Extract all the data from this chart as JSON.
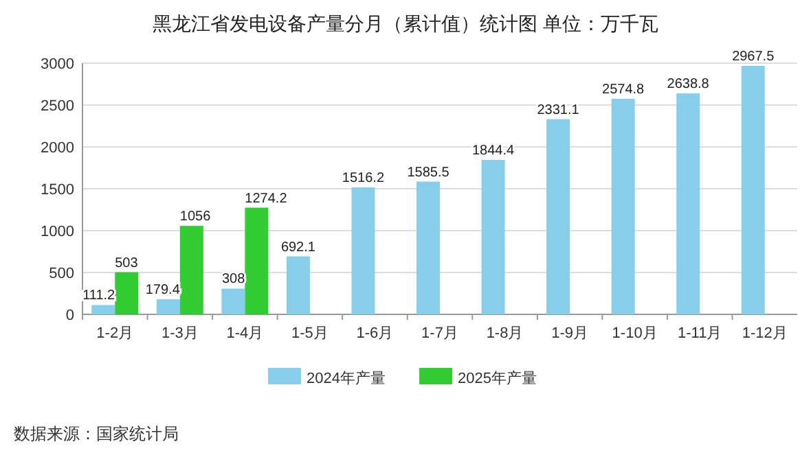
{
  "chart_data": {
    "type": "bar",
    "title": "黑龙江省发电设备产量分月（累计值）统计图 单位：万千瓦",
    "categories": [
      "1-2月",
      "1-3月",
      "1-4月",
      "1-5月",
      "1-6月",
      "1-7月",
      "1-8月",
      "1-9月",
      "1-10月",
      "1-11月",
      "1-12月"
    ],
    "series": [
      {
        "name": "2024年产量",
        "color": "#87ceeb",
        "values": [
          111.2,
          179.4,
          308,
          692.1,
          1516.2,
          1585.5,
          1844.4,
          2331.1,
          2574.8,
          2638.8,
          2967.5
        ]
      },
      {
        "name": "2025年产量",
        "color": "#32cd32",
        "values": [
          503,
          1056,
          1274.2,
          null,
          null,
          null,
          null,
          null,
          null,
          null,
          null
        ]
      }
    ],
    "ylim": [
      0,
      3000
    ],
    "yticks": [
      0,
      500,
      1000,
      1500,
      2000,
      2500,
      3000
    ],
    "grid": "y",
    "legend": "bottom",
    "data_labels": true,
    "annotations": [
      "数据来源：国家统计局"
    ]
  }
}
